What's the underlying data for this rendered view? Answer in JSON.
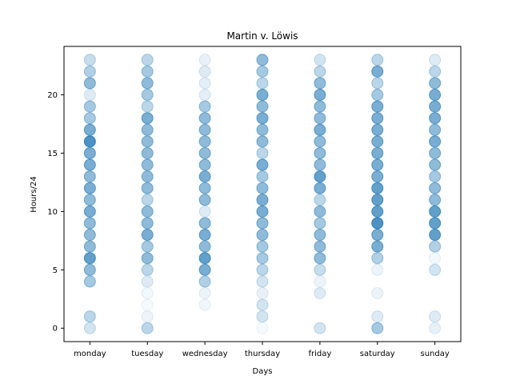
{
  "chart_data": {
    "type": "scatter",
    "title": "Martin v. Löwis",
    "xlabel": "Days",
    "ylabel": "Hours/24",
    "categories": [
      "monday",
      "tuesday",
      "wednesday",
      "thursday",
      "friday",
      "saturday",
      "sunday"
    ],
    "yticks": [
      0,
      5,
      10,
      15,
      20
    ],
    "ylim": [
      -1.15,
      24.15
    ],
    "grid": false,
    "marker_color": "#1f77b4",
    "points": [
      {
        "day": "monday",
        "values": {
          "0": 0.2,
          "1": 0.3,
          "4": 0.4,
          "5": 0.5,
          "6": 0.7,
          "7": 0.5,
          "8": 0.5,
          "9": 0.5,
          "10": 0.6,
          "11": 0.5,
          "12": 0.6,
          "13": 0.5,
          "14": 0.6,
          "15": 0.6,
          "16": 0.8,
          "17": 0.6,
          "18": 0.4,
          "19": 0.4,
          "20": 0.15,
          "21": 0.5,
          "22": 0.35,
          "23": 0.25
        }
      },
      {
        "day": "tuesday",
        "values": {
          "0": 0.3,
          "1": 0.08,
          "2": 0.04,
          "3": 0.06,
          "4": 0.15,
          "5": 0.3,
          "6": 0.5,
          "7": 0.4,
          "8": 0.6,
          "9": 0.5,
          "10": 0.5,
          "11": 0.3,
          "12": 0.5,
          "13": 0.5,
          "14": 0.5,
          "15": 0.5,
          "16": 0.5,
          "17": 0.5,
          "18": 0.6,
          "19": 0.3,
          "20": 0.4,
          "21": 0.5,
          "22": 0.4,
          "23": 0.3
        }
      },
      {
        "day": "wednesday",
        "values": {
          "2": 0.06,
          "3": 0.08,
          "4": 0.35,
          "5": 0.6,
          "6": 0.7,
          "7": 0.5,
          "8": 0.6,
          "9": 0.5,
          "10": 0.15,
          "11": 0.5,
          "12": 0.5,
          "13": 0.6,
          "14": 0.5,
          "15": 0.5,
          "16": 0.5,
          "17": 0.5,
          "18": 0.5,
          "19": 0.4,
          "20": 0.12,
          "21": 0.12,
          "22": 0.15,
          "23": 0.1
        }
      },
      {
        "day": "thursday",
        "values": {
          "0": 0.04,
          "1": 0.2,
          "2": 0.2,
          "3": 0.1,
          "4": 0.2,
          "5": 0.3,
          "6": 0.4,
          "7": 0.4,
          "8": 0.5,
          "9": 0.5,
          "10": 0.6,
          "11": 0.6,
          "12": 0.5,
          "13": 0.4,
          "14": 0.6,
          "15": 0.3,
          "16": 0.5,
          "17": 0.5,
          "18": 0.6,
          "19": 0.5,
          "20": 0.6,
          "21": 0.3,
          "22": 0.4,
          "23": 0.5
        }
      },
      {
        "day": "friday",
        "values": {
          "0": 0.2,
          "3": 0.15,
          "4": 0.08,
          "5": 0.25,
          "6": 0.5,
          "7": 0.5,
          "8": 0.5,
          "9": 0.4,
          "10": 0.5,
          "11": 0.3,
          "12": 0.6,
          "13": 0.7,
          "14": 0.5,
          "15": 0.5,
          "16": 0.5,
          "17": 0.6,
          "18": 0.5,
          "19": 0.5,
          "20": 0.6,
          "21": 0.5,
          "22": 0.3,
          "23": 0.2
        }
      },
      {
        "day": "saturday",
        "values": {
          "0": 0.4,
          "1": 0.15,
          "3": 0.08,
          "5": 0.08,
          "6": 0.35,
          "7": 0.6,
          "8": 0.6,
          "9": 0.8,
          "10": 0.7,
          "11": 0.7,
          "12": 0.7,
          "13": 0.6,
          "14": 0.6,
          "15": 0.6,
          "16": 0.6,
          "17": 0.6,
          "18": 0.6,
          "19": 0.6,
          "20": 0.4,
          "21": 0.3,
          "22": 0.6,
          "23": 0.3
        }
      },
      {
        "day": "sunday",
        "values": {
          "0": 0.1,
          "1": 0.15,
          "5": 0.2,
          "6": 0.06,
          "7": 0.35,
          "8": 0.7,
          "9": 0.7,
          "10": 0.7,
          "11": 0.5,
          "12": 0.5,
          "13": 0.4,
          "14": 0.5,
          "15": 0.5,
          "16": 0.6,
          "17": 0.5,
          "18": 0.6,
          "19": 0.6,
          "20": 0.6,
          "21": 0.5,
          "22": 0.3,
          "23": 0.15
        }
      }
    ]
  }
}
